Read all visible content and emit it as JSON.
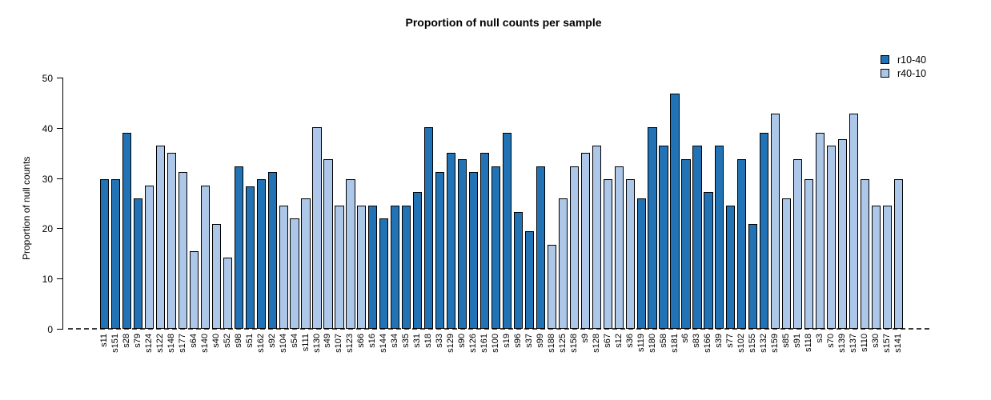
{
  "title": "Proportion of null counts per sample",
  "legend": {
    "items": [
      {
        "label": "r10-40",
        "color": "#2173B5"
      },
      {
        "label": "r40-10",
        "color": "#ACC7E8"
      }
    ]
  },
  "y_axis": {
    "label": "Proportion of null counts",
    "ticks": [
      0,
      10,
      20,
      30,
      40,
      50
    ]
  },
  "chart_data": {
    "type": "bar",
    "title": "Proportion of null counts per sample",
    "xlabel": "",
    "ylabel": "Proportion of null counts",
    "ylim": [
      0,
      50
    ],
    "yticks": [
      0,
      10,
      20,
      30,
      40,
      50
    ],
    "grid": false,
    "legend_position": "top-right",
    "zero_line_style": "dashed",
    "group_colors": {
      "r10-40": "#2173B5",
      "r40-10": "#ACC7E8"
    },
    "categories": [
      "s11",
      "s151",
      "s28",
      "s79",
      "s124",
      "s122",
      "s148",
      "s177",
      "s64",
      "s140",
      "s40",
      "s52",
      "s98",
      "s51",
      "s162",
      "s92",
      "s104",
      "s54",
      "s111",
      "s130",
      "s49",
      "s107",
      "s123",
      "s66",
      "s16",
      "s144",
      "s34",
      "s35",
      "s31",
      "s18",
      "s33",
      "s129",
      "s90",
      "s126",
      "s161",
      "s100",
      "s19",
      "s96",
      "s37",
      "s99",
      "s188",
      "s125",
      "s158",
      "s9",
      "s128",
      "s67",
      "s12",
      "s36",
      "s119",
      "s180",
      "s58",
      "s181",
      "s6",
      "s83",
      "s166",
      "s39",
      "s77",
      "s102",
      "s155",
      "s132",
      "s159",
      "s85",
      "s91",
      "s118",
      "s3",
      "s70",
      "s139",
      "s137",
      "s110",
      "s30",
      "s157",
      "s141"
    ],
    "values": [
      29.8,
      29.8,
      39.0,
      25.9,
      28.5,
      36.4,
      35.0,
      31.2,
      15.5,
      28.5,
      20.8,
      14.2,
      32.4,
      28.4,
      29.8,
      31.2,
      24.5,
      22.0,
      25.9,
      40.2,
      33.7,
      24.5,
      29.8,
      24.5,
      24.5,
      22.0,
      24.5,
      24.5,
      27.2,
      40.2,
      31.2,
      35.0,
      33.7,
      31.2,
      35.0,
      32.4,
      39.0,
      23.3,
      19.5,
      32.4,
      16.8,
      26.0,
      32.4,
      35.0,
      36.4,
      29.8,
      32.4,
      29.8,
      26.0,
      40.2,
      36.4,
      46.8,
      33.7,
      36.4,
      27.2,
      36.4,
      24.5,
      33.7,
      20.8,
      39.0,
      42.8,
      26.0,
      33.7,
      29.8,
      39.0,
      36.4,
      37.7,
      42.8,
      29.8,
      24.5,
      24.5,
      29.8
    ],
    "groups": [
      "r10-40",
      "r10-40",
      "r10-40",
      "r10-40",
      "r40-10",
      "r40-10",
      "r40-10",
      "r40-10",
      "r40-10",
      "r40-10",
      "r40-10",
      "r40-10",
      "r10-40",
      "r10-40",
      "r10-40",
      "r10-40",
      "r40-10",
      "r40-10",
      "r40-10",
      "r40-10",
      "r40-10",
      "r40-10",
      "r40-10",
      "r40-10",
      "r10-40",
      "r10-40",
      "r10-40",
      "r10-40",
      "r10-40",
      "r10-40",
      "r10-40",
      "r10-40",
      "r10-40",
      "r10-40",
      "r10-40",
      "r10-40",
      "r10-40",
      "r10-40",
      "r10-40",
      "r10-40",
      "r40-10",
      "r40-10",
      "r40-10",
      "r40-10",
      "r40-10",
      "r40-10",
      "r40-10",
      "r40-10",
      "r10-40",
      "r10-40",
      "r10-40",
      "r10-40",
      "r10-40",
      "r10-40",
      "r10-40",
      "r10-40",
      "r10-40",
      "r10-40",
      "r10-40",
      "r10-40",
      "r40-10",
      "r40-10",
      "r40-10",
      "r40-10",
      "r40-10",
      "r40-10",
      "r40-10",
      "r40-10",
      "r40-10",
      "r40-10",
      "r40-10",
      "r40-10"
    ]
  }
}
